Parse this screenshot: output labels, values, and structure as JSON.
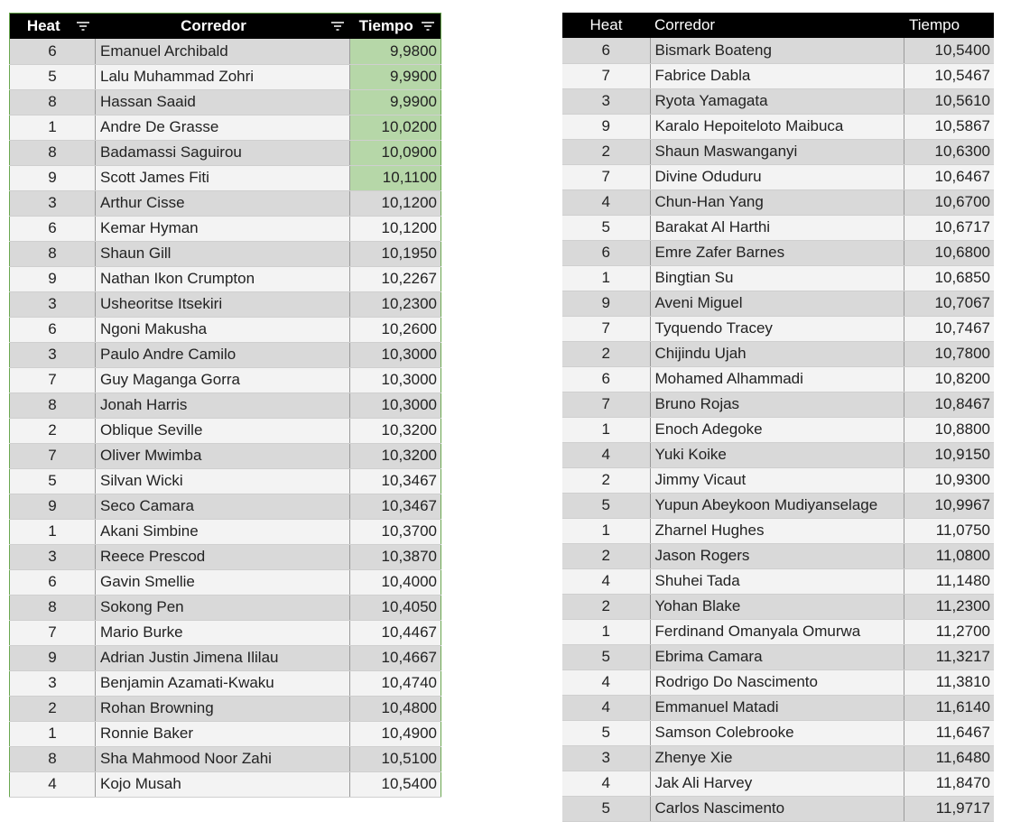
{
  "left_table": {
    "headers": {
      "heat": "Heat",
      "runner": "Corredor",
      "time": "Tiempo"
    },
    "highlight_color": "#b6d7a8",
    "highlighted_rows": 6,
    "rows": [
      [
        "6",
        "Emanuel Archibald",
        "9,9800"
      ],
      [
        "5",
        "Lalu Muhammad Zohri",
        "9,9900"
      ],
      [
        "8",
        "Hassan Saaid",
        "9,9900"
      ],
      [
        "1",
        "Andre De Grasse",
        "10,0200"
      ],
      [
        "8",
        "Badamassi Saguirou",
        "10,0900"
      ],
      [
        "9",
        "Scott James Fiti",
        "10,1100"
      ],
      [
        "3",
        "Arthur Cisse",
        "10,1200"
      ],
      [
        "6",
        "Kemar Hyman",
        "10,1200"
      ],
      [
        "8",
        "Shaun Gill",
        "10,1950"
      ],
      [
        "9",
        "Nathan Ikon Crumpton",
        "10,2267"
      ],
      [
        "3",
        "Usheoritse Itsekiri",
        "10,2300"
      ],
      [
        "6",
        "Ngoni Makusha",
        "10,2600"
      ],
      [
        "3",
        "Paulo Andre Camilo",
        "10,3000"
      ],
      [
        "7",
        "Guy Maganga Gorra",
        "10,3000"
      ],
      [
        "8",
        "Jonah Harris",
        "10,3000"
      ],
      [
        "2",
        "Oblique Seville",
        "10,3200"
      ],
      [
        "7",
        "Oliver Mwimba",
        "10,3200"
      ],
      [
        "5",
        "Silvan Wicki",
        "10,3467"
      ],
      [
        "9",
        "Seco Camara",
        "10,3467"
      ],
      [
        "1",
        "Akani Simbine",
        "10,3700"
      ],
      [
        "3",
        "Reece Prescod",
        "10,3870"
      ],
      [
        "6",
        "Gavin Smellie",
        "10,4000"
      ],
      [
        "8",
        "Sokong Pen",
        "10,4050"
      ],
      [
        "7",
        "Mario Burke",
        "10,4467"
      ],
      [
        "9",
        "Adrian Justin Jimena Ililau",
        "10,4667"
      ],
      [
        "3",
        "Benjamin Azamati-Kwaku",
        "10,4740"
      ],
      [
        "2",
        "Rohan Browning",
        "10,4800"
      ],
      [
        "1",
        "Ronnie Baker",
        "10,4900"
      ],
      [
        "8",
        "Sha Mahmood Noor Zahi",
        "10,5100"
      ],
      [
        "4",
        "Kojo Musah",
        "10,5400"
      ]
    ]
  },
  "right_table": {
    "headers": {
      "heat": "Heat",
      "runner": "Corredor",
      "time": "Tiempo"
    },
    "rows": [
      [
        "6",
        "Bismark Boateng",
        "10,5400"
      ],
      [
        "7",
        "Fabrice Dabla",
        "10,5467"
      ],
      [
        "3",
        "Ryota Yamagata",
        "10,5610"
      ],
      [
        "9",
        "Karalo Hepoiteloto Maibuca",
        "10,5867"
      ],
      [
        "2",
        "Shaun Maswanganyi",
        "10,6300"
      ],
      [
        "7",
        "Divine Oduduru",
        "10,6467"
      ],
      [
        "4",
        "Chun-Han Yang",
        "10,6700"
      ],
      [
        "5",
        "Barakat Al Harthi",
        "10,6717"
      ],
      [
        "6",
        "Emre Zafer Barnes",
        "10,6800"
      ],
      [
        "1",
        "Bingtian Su",
        "10,6850"
      ],
      [
        "9",
        "Aveni Miguel",
        "10,7067"
      ],
      [
        "7",
        "Tyquendo Tracey",
        "10,7467"
      ],
      [
        "2",
        "Chijindu Ujah",
        "10,7800"
      ],
      [
        "6",
        "Mohamed Alhammadi",
        "10,8200"
      ],
      [
        "7",
        "Bruno Rojas",
        "10,8467"
      ],
      [
        "1",
        "Enoch Adegoke",
        "10,8800"
      ],
      [
        "4",
        "Yuki Koike",
        "10,9150"
      ],
      [
        "2",
        "Jimmy Vicaut",
        "10,9300"
      ],
      [
        "5",
        "Yupun Abeykoon Mudiyanselage",
        "10,9967"
      ],
      [
        "1",
        "Zharnel Hughes",
        "11,0750"
      ],
      [
        "2",
        "Jason Rogers",
        "11,0800"
      ],
      [
        "4",
        "Shuhei Tada",
        "11,1480"
      ],
      [
        "2",
        "Yohan Blake",
        "11,2300"
      ],
      [
        "1",
        "Ferdinand Omanyala Omurwa",
        "11,2700"
      ],
      [
        "5",
        "Ebrima Camara",
        "11,3217"
      ],
      [
        "4",
        "Rodrigo Do Nascimento",
        "11,3810"
      ],
      [
        "4",
        "Emmanuel Matadi",
        "11,6140"
      ],
      [
        "5",
        "Samson Colebrooke",
        "11,6467"
      ],
      [
        "3",
        "Zhenye Xie",
        "11,6480"
      ],
      [
        "4",
        "Jak Ali Harvey",
        "11,8470"
      ],
      [
        "5",
        "Carlos Nascimento",
        "11,9717"
      ]
    ]
  },
  "icons": {
    "filter": "filter-icon"
  }
}
